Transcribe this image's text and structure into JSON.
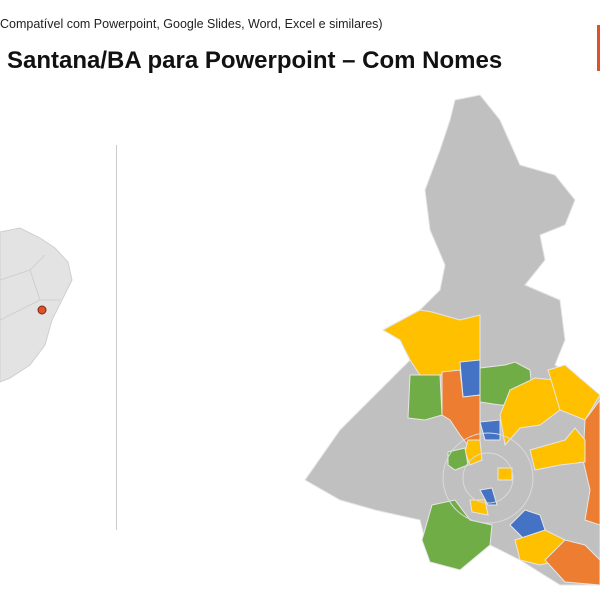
{
  "header": {
    "subtitle": "Compatível com Powerpoint, Google Slides, Word, Excel e similares)",
    "title": "Santana/BA para Powerpoint – Com Nomes"
  },
  "colors": {
    "accent": "#E0502A",
    "base": "#C0C0C0",
    "yellow": "#FFC000",
    "orange": "#ED7D31",
    "green": "#70AD47",
    "blue": "#4472C4",
    "marker": "#E0502A"
  }
}
